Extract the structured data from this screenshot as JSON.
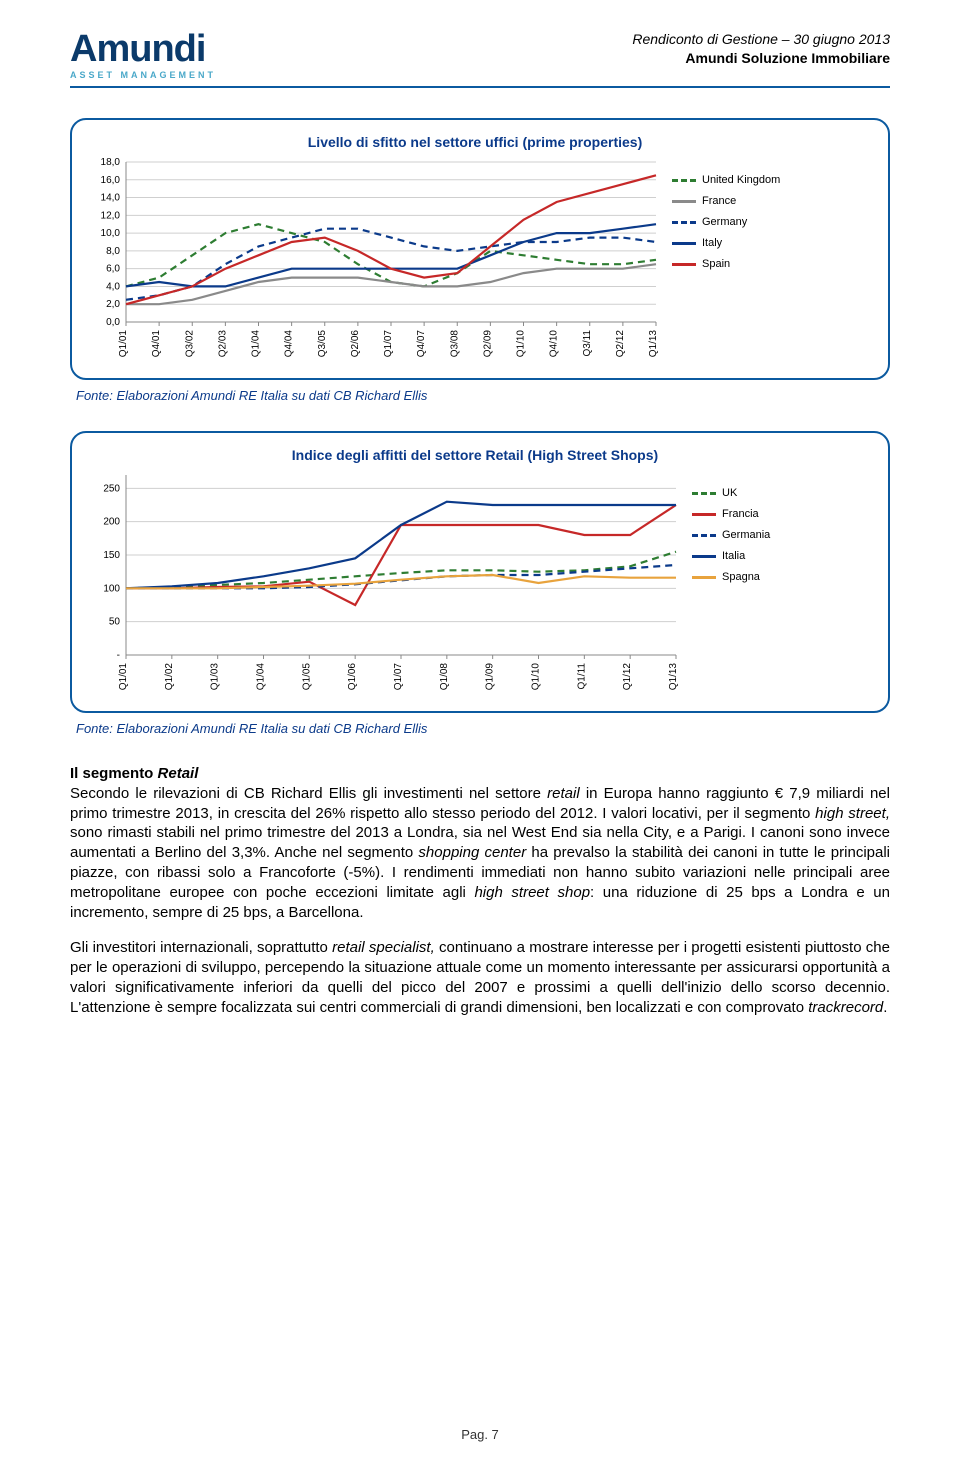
{
  "header": {
    "brand": "Amundi",
    "brand_sub": "ASSET MANAGEMENT",
    "line1": "Rendiconto di Gestione – 30 giugno 2013",
    "line2": "Amundi Soluzione Immobiliare"
  },
  "chart1": {
    "title": "Livello di sfitto nel settore uffici (prime properties)",
    "title_color": "#0b3a8a",
    "title_fontsize": 14,
    "border_color": "#0b5aa0",
    "background_color": "#ffffff",
    "grid_color": "#cfcfcf",
    "ylim": [
      0,
      18
    ],
    "ytick_step": 2,
    "yticks": [
      "0,0",
      "2,0",
      "4,0",
      "6,0",
      "8,0",
      "10,0",
      "12,0",
      "14,0",
      "16,0",
      "18,0"
    ],
    "xlabels": [
      "Q1/01",
      "Q4/01",
      "Q3/02",
      "Q2/03",
      "Q1/04",
      "Q4/04",
      "Q3/05",
      "Q2/06",
      "Q1/07",
      "Q4/07",
      "Q3/08",
      "Q2/09",
      "Q1/10",
      "Q4/10",
      "Q3/11",
      "Q2/12",
      "Q1/13"
    ],
    "series": {
      "uk": {
        "label": "United Kingdom",
        "color": "#2e7d32",
        "dash": true,
        "y": [
          4.0,
          5.0,
          7.5,
          10.0,
          11.0,
          10.0,
          9.0,
          6.5,
          4.5,
          4.0,
          5.5,
          8.0,
          7.5,
          7.0,
          6.5,
          6.5,
          7.0
        ]
      },
      "france": {
        "label": "France",
        "color": "#8a8a8a",
        "dash": false,
        "y": [
          2.0,
          2.0,
          2.5,
          3.5,
          4.5,
          5.0,
          5.0,
          5.0,
          4.5,
          4.0,
          4.0,
          4.5,
          5.5,
          6.0,
          6.0,
          6.0,
          6.5
        ]
      },
      "germany": {
        "label": "Germany",
        "color": "#0b3a8a",
        "dash": true,
        "y": [
          2.5,
          3.0,
          4.0,
          6.5,
          8.5,
          9.5,
          10.5,
          10.5,
          9.5,
          8.5,
          8.0,
          8.5,
          9.0,
          9.0,
          9.5,
          9.5,
          9.0
        ]
      },
      "italy": {
        "label": "Italy",
        "color": "#0b3a8a",
        "dash": false,
        "y": [
          4.0,
          4.5,
          4.0,
          4.0,
          5.0,
          6.0,
          6.0,
          6.0,
          6.0,
          6.0,
          6.0,
          7.5,
          9.0,
          10.0,
          10.0,
          10.5,
          11.0
        ]
      },
      "spain": {
        "label": "Spain",
        "color": "#c62828",
        "dash": false,
        "y": [
          2.0,
          3.0,
          4.0,
          6.0,
          7.5,
          9.0,
          9.5,
          8.0,
          6.0,
          5.0,
          5.5,
          8.5,
          11.5,
          13.5,
          14.5,
          15.5,
          16.5
        ]
      }
    },
    "legend_order": [
      "uk",
      "france",
      "germany",
      "italy",
      "spain"
    ],
    "line_width": 2.2,
    "tick_fontsize": 10
  },
  "caption1": "Fonte: Elaborazioni Amundi RE Italia su dati CB Richard Ellis",
  "chart2": {
    "title": "Indice degli affitti del settore Retail (High Street Shops)",
    "title_color": "#0b3a8a",
    "title_fontsize": 14,
    "border_color": "#0b5aa0",
    "background_color": "#ffffff",
    "grid_color": "#cfcfcf",
    "ylim": [
      0,
      270
    ],
    "yticks_values": [
      50,
      100,
      150,
      200,
      250
    ],
    "yticks_labels": [
      "50",
      "100",
      "150",
      "200",
      "250"
    ],
    "ytick_bottom_label": "-",
    "xlabels": [
      "Q1/01",
      "Q1/02",
      "Q1/03",
      "Q1/04",
      "Q1/05",
      "Q1/06",
      "Q1/07",
      "Q1/08",
      "Q1/09",
      "Q1/10",
      "Q1/11",
      "Q1/12",
      "Q1/13"
    ],
    "series": {
      "uk": {
        "label": "UK",
        "color": "#2e7d32",
        "dash": true,
        "y": [
          100,
          102,
          105,
          108,
          113,
          118,
          123,
          127,
          127,
          125,
          127,
          133,
          155
        ]
      },
      "francia": {
        "label": "Francia",
        "color": "#c62828",
        "dash": false,
        "y": [
          100,
          100,
          102,
          103,
          110,
          75,
          195,
          195,
          195,
          195,
          180,
          180,
          225
        ]
      },
      "germania": {
        "label": "Germania",
        "color": "#0b3a8a",
        "dash": true,
        "y": [
          100,
          100,
          100,
          100,
          102,
          106,
          112,
          118,
          120,
          120,
          125,
          130,
          135
        ]
      },
      "italia": {
        "label": "Italia",
        "color": "#0b3a8a",
        "dash": false,
        "y": [
          100,
          103,
          108,
          118,
          130,
          145,
          195,
          230,
          225,
          225,
          225,
          225,
          225
        ]
      },
      "spagna": {
        "label": "Spagna",
        "color": "#e8a33d",
        "dash": false,
        "y": [
          100,
          100,
          100,
          102,
          104,
          107,
          113,
          118,
          120,
          108,
          118,
          116,
          116
        ]
      }
    },
    "legend_order": [
      "uk",
      "francia",
      "germania",
      "italia",
      "spagna"
    ],
    "line_width": 2.2,
    "tick_fontsize": 10
  },
  "caption2": "Fonte: Elaborazioni Amundi RE Italia su dati CB Richard Ellis",
  "body": {
    "section_title_pre": "Il segmento ",
    "section_title_em": "Retail",
    "p1a": "Secondo le rilevazioni di CB Richard Ellis gli investimenti nel settore ",
    "p1a_i": "retail",
    "p1b": " in Europa hanno raggiunto € 7,9 miliardi nel primo trimestre 2013, in crescita del 26% rispetto allo stesso periodo del 2012. I valori locativi, per il segmento ",
    "p1b_i": "high street,",
    "p1c": " sono rimasti stabili nel primo trimestre del 2013 a Londra, sia nel West End sia nella City, e a Parigi. I canoni sono invece aumentati a Berlino del 3,3%. Anche nel segmento ",
    "p1c_i": "shopping center",
    "p1d": " ha prevalso la stabilità dei canoni in tutte le principali piazze, con ribassi solo a Francoforte (-5%). I rendimenti immediati non hanno subito variazioni nelle principali aree metropolitane europee con poche eccezioni limitate agli ",
    "p1d_i": "high street shop",
    "p1e": ": una riduzione di 25 bps a Londra e un incremento, sempre di 25 bps, a Barcellona.",
    "p2a": "Gli investitori internazionali, soprattutto ",
    "p2a_i": "retail specialist,",
    "p2b": " continuano a mostrare interesse per i progetti esistenti piuttosto che per le operazioni di sviluppo, percependo la situazione attuale come un momento interessante per assicurarsi opportunità a valori significativamente inferiori da quelli del picco del 2007 e prossimi a quelli dell'inizio dello scorso decennio. L'attenzione è sempre focalizzata sui centri commerciali di grandi dimensioni, ben localizzati e con comprovato ",
    "p2b_i": "trackrecord",
    "p2c": "."
  },
  "footer": "Pag. 7"
}
